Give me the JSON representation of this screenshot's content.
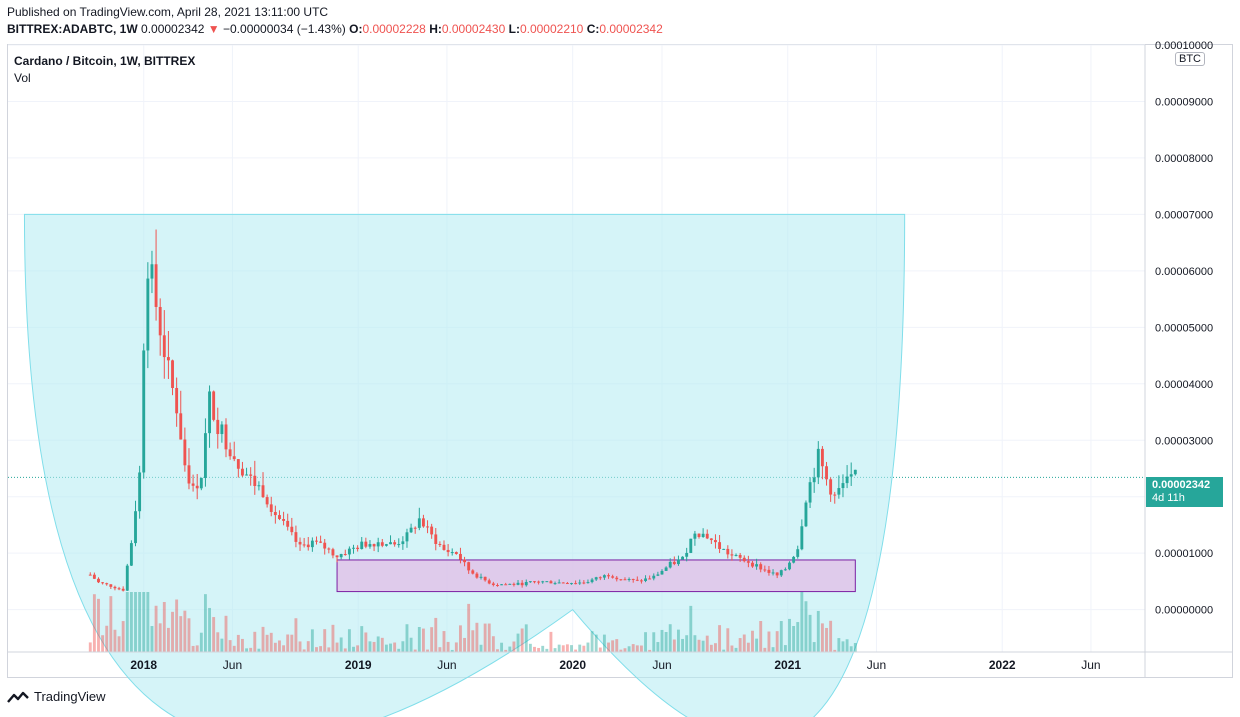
{
  "header": {
    "published": "Published on TradingView.com, April 28, 2021 13:11:00 UTC",
    "symbol": "BITTREX:ADABTC, 1W",
    "last": "0.00002342",
    "change_arrow": "▼",
    "change": "−0.00000034 (−1.43%)",
    "o_label": "O:",
    "o_value": "0.00002228",
    "h_label": "H:",
    "h_value": "0.00002430",
    "l_label": "L:",
    "l_value": "0.00002210",
    "c_label": "C:",
    "c_value": "0.00002342"
  },
  "legend": {
    "title": "Cardano / Bitcoin, 1W, BITTREX",
    "vol": "Vol"
  },
  "axis": {
    "unit": "BTC"
  },
  "price_tag": {
    "price": "0.00002342",
    "countdown": "4d 11h"
  },
  "footer": {
    "brand": "TradingView"
  },
  "colors": {
    "up": "#26a69a",
    "down": "#ef5350",
    "bowl": "#b2ebf2",
    "box": "#e1bee7",
    "box_border": "#7b1fa2"
  },
  "chart_data": {
    "type": "candlestick",
    "title": "Cardano / Bitcoin, 1W, BITTREX",
    "y_unit": "BTC",
    "ylim": [
      -7.5e-06,
      0.0001
    ],
    "y_ticks": [
      {
        "value": 0.0,
        "label": "0.00000000"
      },
      {
        "value": 1e-05,
        "label": "0.00001000"
      },
      {
        "value": 2e-05,
        "label": "0.00002000"
      },
      {
        "value": 3e-05,
        "label": "0.00003000"
      },
      {
        "value": 4e-05,
        "label": "0.00004000"
      },
      {
        "value": 5e-05,
        "label": "0.00005000"
      },
      {
        "value": 6e-05,
        "label": "0.00006000"
      },
      {
        "value": 7e-05,
        "label": "0.00007000"
      },
      {
        "value": 8e-05,
        "label": "0.00008000"
      },
      {
        "value": 9e-05,
        "label": "0.00009000"
      },
      {
        "value": 0.0001,
        "label": "0.00010000"
      }
    ],
    "x_ticks": [
      {
        "date": "2018-01-01",
        "label": "2018",
        "bold": true
      },
      {
        "date": "2018-06-01",
        "label": "Jun",
        "bold": false
      },
      {
        "date": "2019-01-01",
        "label": "2019",
        "bold": true
      },
      {
        "date": "2019-06-01",
        "label": "Jun",
        "bold": false
      },
      {
        "date": "2020-01-01",
        "label": "2020",
        "bold": true
      },
      {
        "date": "2020-06-01",
        "label": "Jun",
        "bold": false
      },
      {
        "date": "2021-01-01",
        "label": "2021",
        "bold": true
      },
      {
        "date": "2021-06-01",
        "label": "Jun",
        "bold": false
      },
      {
        "date": "2022-01-01",
        "label": "2022",
        "bold": true
      },
      {
        "date": "2022-06-01",
        "label": "Jun",
        "bold": false
      }
    ],
    "xlim": [
      "2017-05-15",
      "2022-09-01"
    ],
    "last_price": 2.342e-05,
    "close_path": [
      [
        "2017-10-02",
        6.2e-06
      ],
      [
        "2017-10-16",
        4.8e-06
      ],
      [
        "2017-11-06",
        4.2e-06
      ],
      [
        "2017-11-27",
        3.5e-06
      ],
      [
        "2017-12-11",
        1.2e-05
      ],
      [
        "2017-12-25",
        2.4e-05
      ],
      [
        "2018-01-01",
        4.8e-05
      ],
      [
        "2018-01-08",
        6.2e-05
      ],
      [
        "2018-01-15",
        5.8e-05
      ],
      [
        "2018-01-29",
        5e-05
      ],
      [
        "2018-02-12",
        4.2e-05
      ],
      [
        "2018-02-26",
        3.6e-05
      ],
      [
        "2018-03-12",
        2.6e-05
      ],
      [
        "2018-03-26",
        2.1e-05
      ],
      [
        "2018-04-09",
        2.4e-05
      ],
      [
        "2018-04-23",
        3.7e-05
      ],
      [
        "2018-05-07",
        3.3e-05
      ],
      [
        "2018-05-21",
        3e-05
      ],
      [
        "2018-06-11",
        2.6e-05
      ],
      [
        "2018-07-02",
        2.3e-05
      ],
      [
        "2018-07-23",
        2.1e-05
      ],
      [
        "2018-08-13",
        1.7e-05
      ],
      [
        "2018-09-03",
        1.4e-05
      ],
      [
        "2018-09-24",
        1.1e-05
      ],
      [
        "2018-10-15",
        1.2e-05
      ],
      [
        "2018-11-05",
        1.1e-05
      ],
      [
        "2018-11-26",
        9.5e-06
      ],
      [
        "2018-12-17",
        1.05e-05
      ],
      [
        "2019-01-07",
        1.15e-05
      ],
      [
        "2019-02-04",
        1.2e-05
      ],
      [
        "2019-03-04",
        1.15e-05
      ],
      [
        "2019-03-25",
        1.3e-05
      ],
      [
        "2019-04-15",
        1.6e-05
      ],
      [
        "2019-05-06",
        1.3e-05
      ],
      [
        "2019-05-27",
        1.05e-05
      ],
      [
        "2019-06-17",
        1e-05
      ],
      [
        "2019-07-08",
        7e-06
      ],
      [
        "2019-07-29",
        5.5e-06
      ],
      [
        "2019-08-19",
        4.5e-06
      ],
      [
        "2019-09-30",
        4.5e-06
      ],
      [
        "2019-11-04",
        5e-06
      ],
      [
        "2019-12-09",
        4.8e-06
      ],
      [
        "2020-01-20",
        4.8e-06
      ],
      [
        "2020-03-02",
        6.2e-06
      ],
      [
        "2020-03-23",
        5.5e-06
      ],
      [
        "2020-04-20",
        5e-06
      ],
      [
        "2020-05-18",
        5.8e-06
      ],
      [
        "2020-06-15",
        8e-06
      ],
      [
        "2020-07-06",
        9e-06
      ],
      [
        "2020-07-27",
        1.4e-05
      ],
      [
        "2020-08-17",
        1.3e-05
      ],
      [
        "2020-09-07",
        1.1e-05
      ],
      [
        "2020-09-28",
        9.5e-06
      ],
      [
        "2020-10-26",
        8.5e-06
      ],
      [
        "2020-11-23",
        7e-06
      ],
      [
        "2020-12-14",
        6e-06
      ],
      [
        "2020-12-28",
        7.2e-06
      ],
      [
        "2021-01-18",
        1.1e-05
      ],
      [
        "2021-02-01",
        2e-05
      ],
      [
        "2021-02-22",
        2.7e-05
      ],
      [
        "2021-03-08",
        2.3e-05
      ],
      [
        "2021-03-22",
        2e-05
      ],
      [
        "2021-04-05",
        2.2e-05
      ],
      [
        "2021-04-26",
        2.342e-05
      ]
    ],
    "cup_drawing": {
      "left": [
        "2017-06-12",
        7e-05
      ],
      "bottom": [
        "2020-01-01",
        0.0
      ],
      "right": [
        "2021-07-19",
        7e-05
      ]
    },
    "range_box": {
      "from": "2018-11-26",
      "to": "2021-04-26",
      "low": 3.2e-06,
      "high": 8.8e-06
    }
  }
}
